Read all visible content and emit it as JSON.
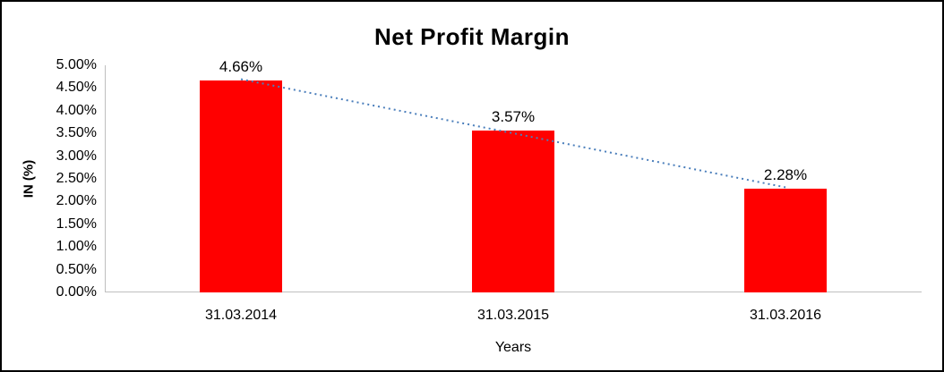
{
  "chart_data": {
    "type": "bar",
    "title": "Net Profit Margin",
    "categories": [
      "31.03.2014",
      "31.03.2015",
      "31.03.2016"
    ],
    "values": [
      4.66,
      3.57,
      2.28
    ],
    "data_labels": [
      "4.66%",
      "3.57%",
      "2.28%"
    ],
    "xlabel": "Years",
    "ylabel": "IN (%)",
    "ylim": [
      0,
      5
    ],
    "ytick_step": 0.5,
    "ytick_labels": [
      "0.00%",
      "0.50%",
      "1.00%",
      "1.50%",
      "2.00%",
      "2.50%",
      "3.00%",
      "3.50%",
      "4.00%",
      "4.50%",
      "5.00%"
    ],
    "grid": false,
    "legend": false,
    "bar_color": "#ff0000",
    "trendline": {
      "type": "linear",
      "style": "dotted",
      "color": "#4a7ebb"
    },
    "axis_line_color": "#bfbfbf",
    "text_color": "#000000",
    "background": "#ffffff",
    "border_color": "#000000"
  }
}
